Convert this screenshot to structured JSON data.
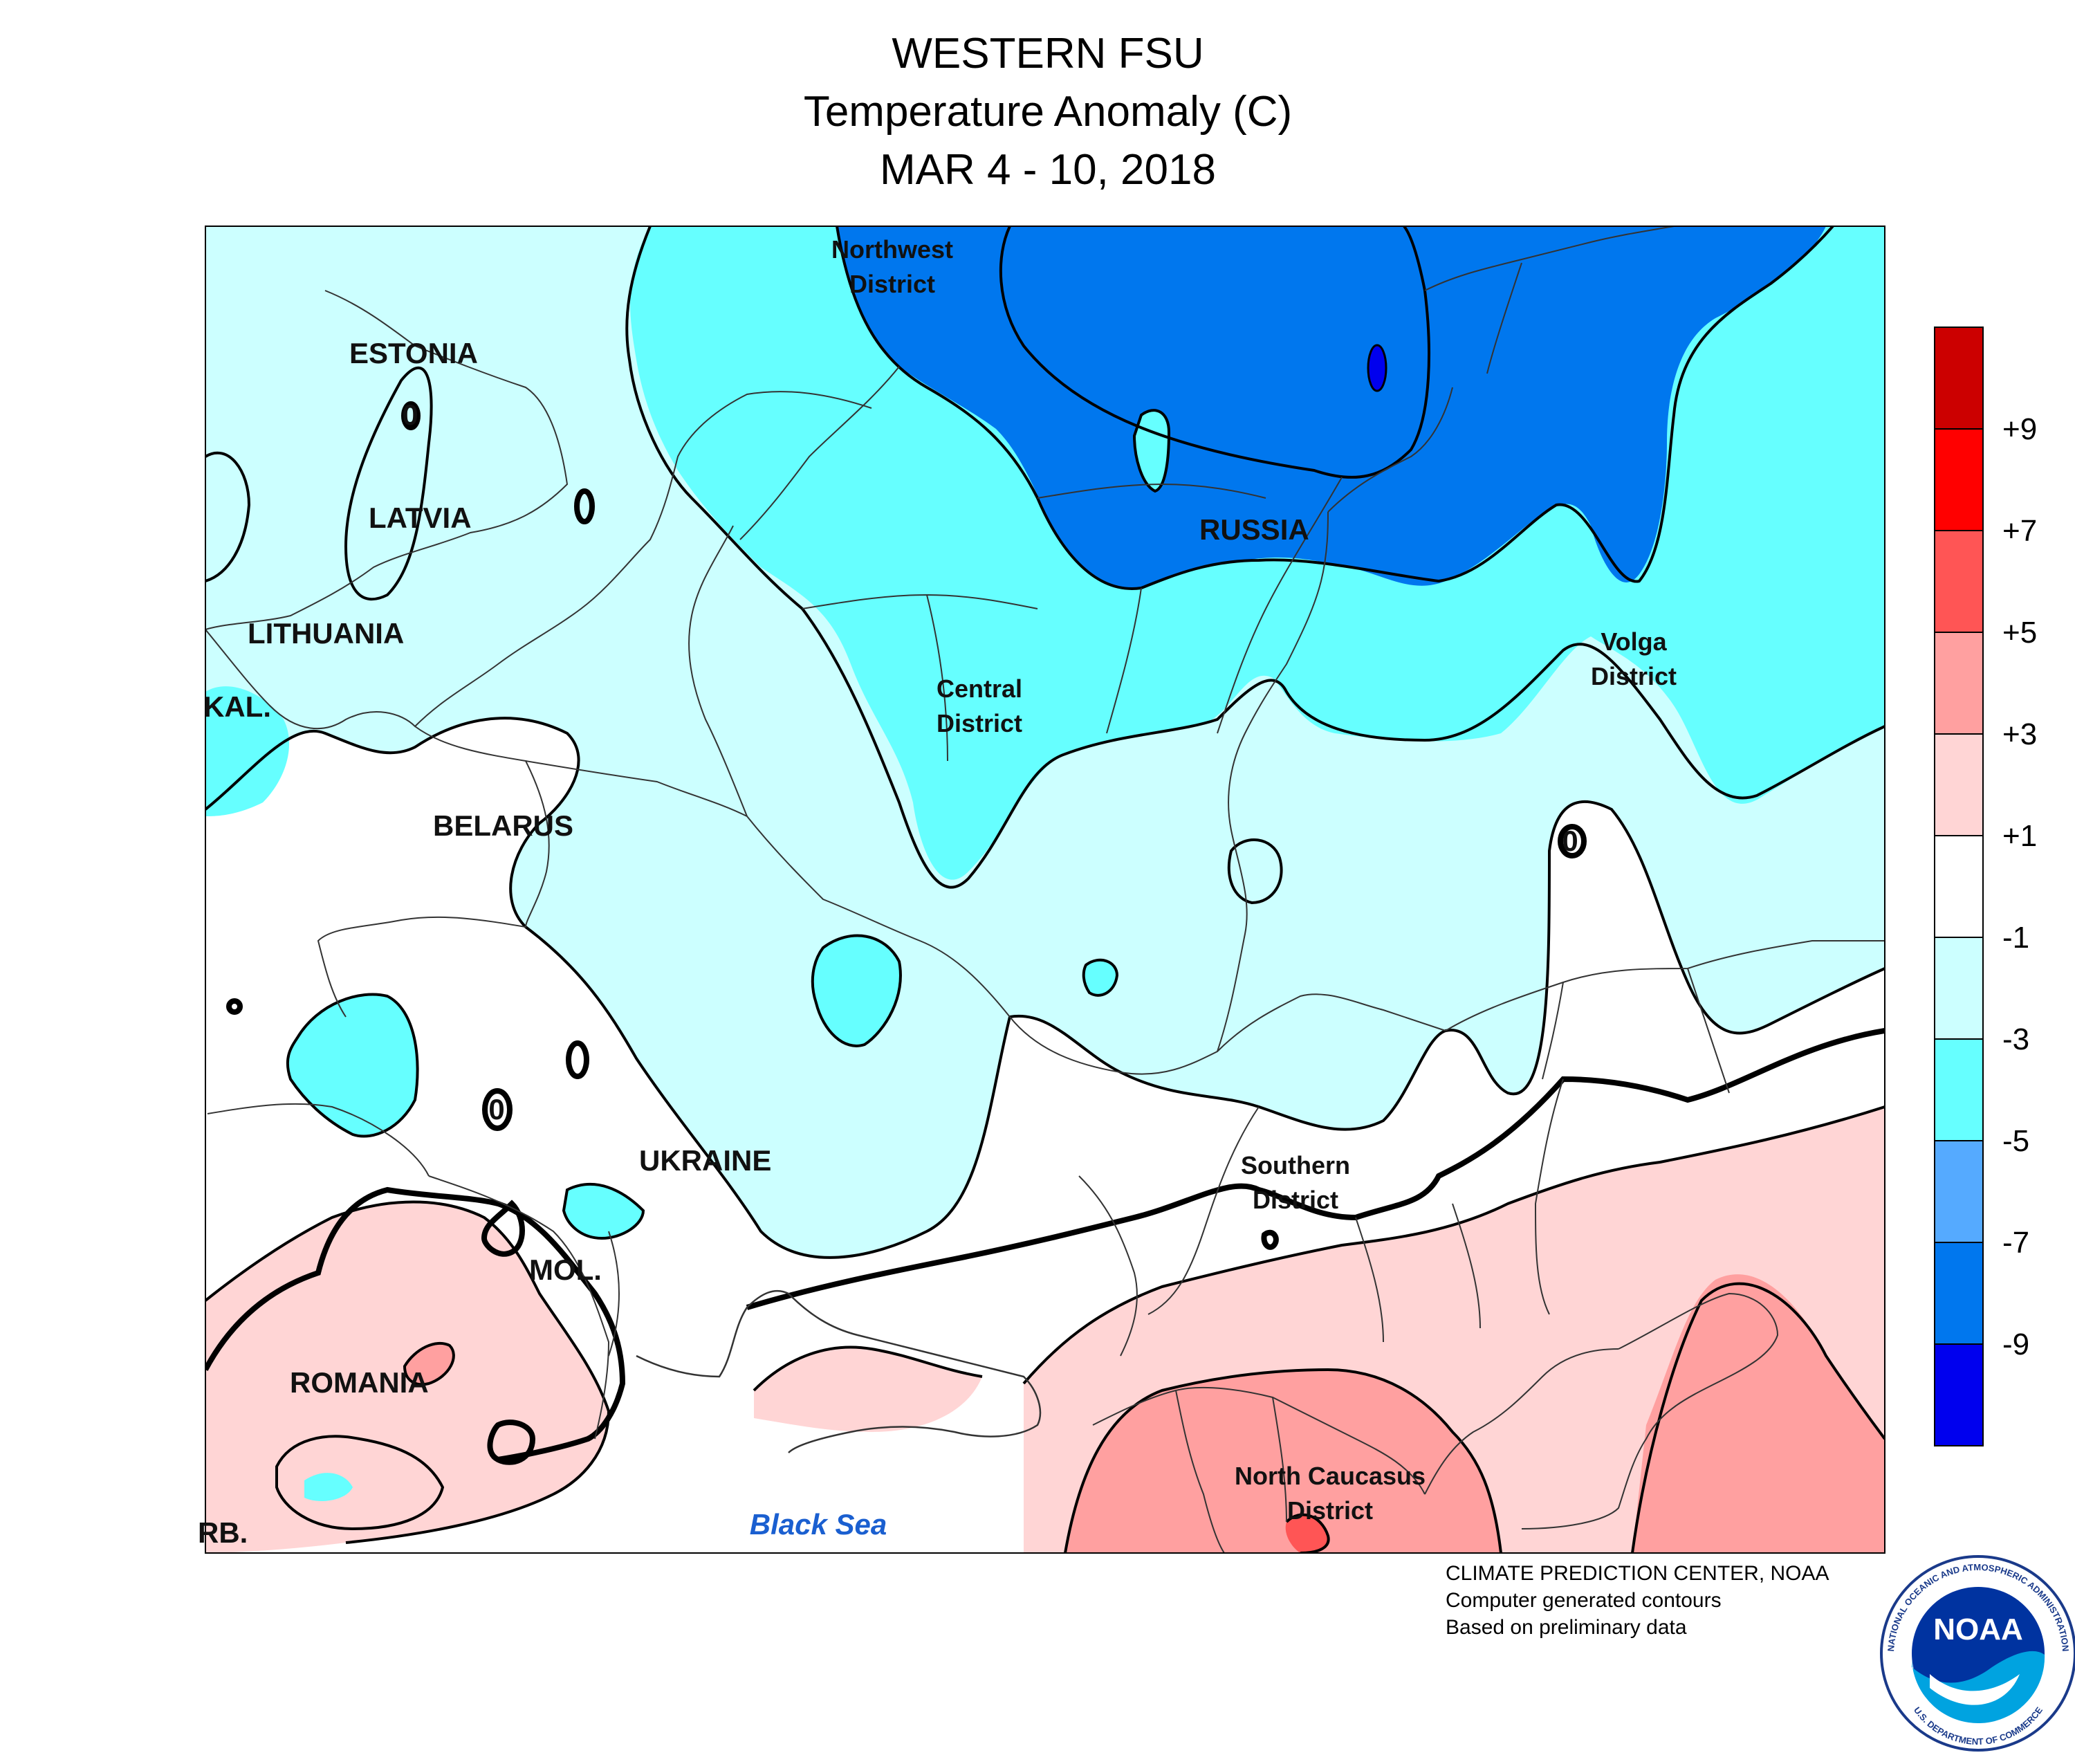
{
  "title": {
    "line1": "WESTERN FSU",
    "line2": "Temperature Anomaly (C)",
    "line3": "MAR 4 - 10, 2018"
  },
  "countries": {
    "estonia": "ESTONIA",
    "latvia": "LATVIA",
    "lithuania": "LITHUANIA",
    "kaliningrad": "KAL.",
    "belarus": "BELARUS",
    "ukraine": "UKRAINE",
    "moldova": "MOL.",
    "romania": "ROMANIA",
    "serbia": "RB.",
    "russia": "RUSSIA"
  },
  "districts": {
    "northwest": [
      "Northwest",
      "District"
    ],
    "central": [
      "Central",
      "District"
    ],
    "volga": [
      "Volga",
      "District"
    ],
    "southern": [
      "Southern",
      "District"
    ],
    "north_caucasus": [
      "North Caucasus",
      "District"
    ]
  },
  "sea": "Black Sea",
  "contour_labels": [
    "0",
    "0",
    "0"
  ],
  "color_scale": {
    "labels": [
      "+9",
      "+7",
      "+5",
      "+3",
      "+1",
      "-1",
      "-3",
      "-5",
      "-7",
      "-9"
    ],
    "bins": [
      {
        "color": "#cc0000"
      },
      {
        "color": "#ff0000"
      },
      {
        "color": "#ff5555"
      },
      {
        "color": "#ffa0a0"
      },
      {
        "color": "#ffd5d5"
      },
      {
        "color": "#ffffff"
      },
      {
        "color": "#ccffff"
      },
      {
        "color": "#66ffff"
      },
      {
        "color": "#55aaff"
      },
      {
        "color": "#0077ee"
      },
      {
        "color": "#0000ee"
      }
    ]
  },
  "credits": {
    "line1": "CLIMATE PREDICTION CENTER, NOAA",
    "line2": "Computer generated contours",
    "line3": "Based on preliminary data"
  },
  "logo": {
    "text": "NOAA",
    "ring_top": "NATIONAL OCEANIC AND ATMOSPHERIC ADMINISTRATION",
    "ring_bottom": "U.S. DEPARTMENT OF COMMERCE"
  }
}
